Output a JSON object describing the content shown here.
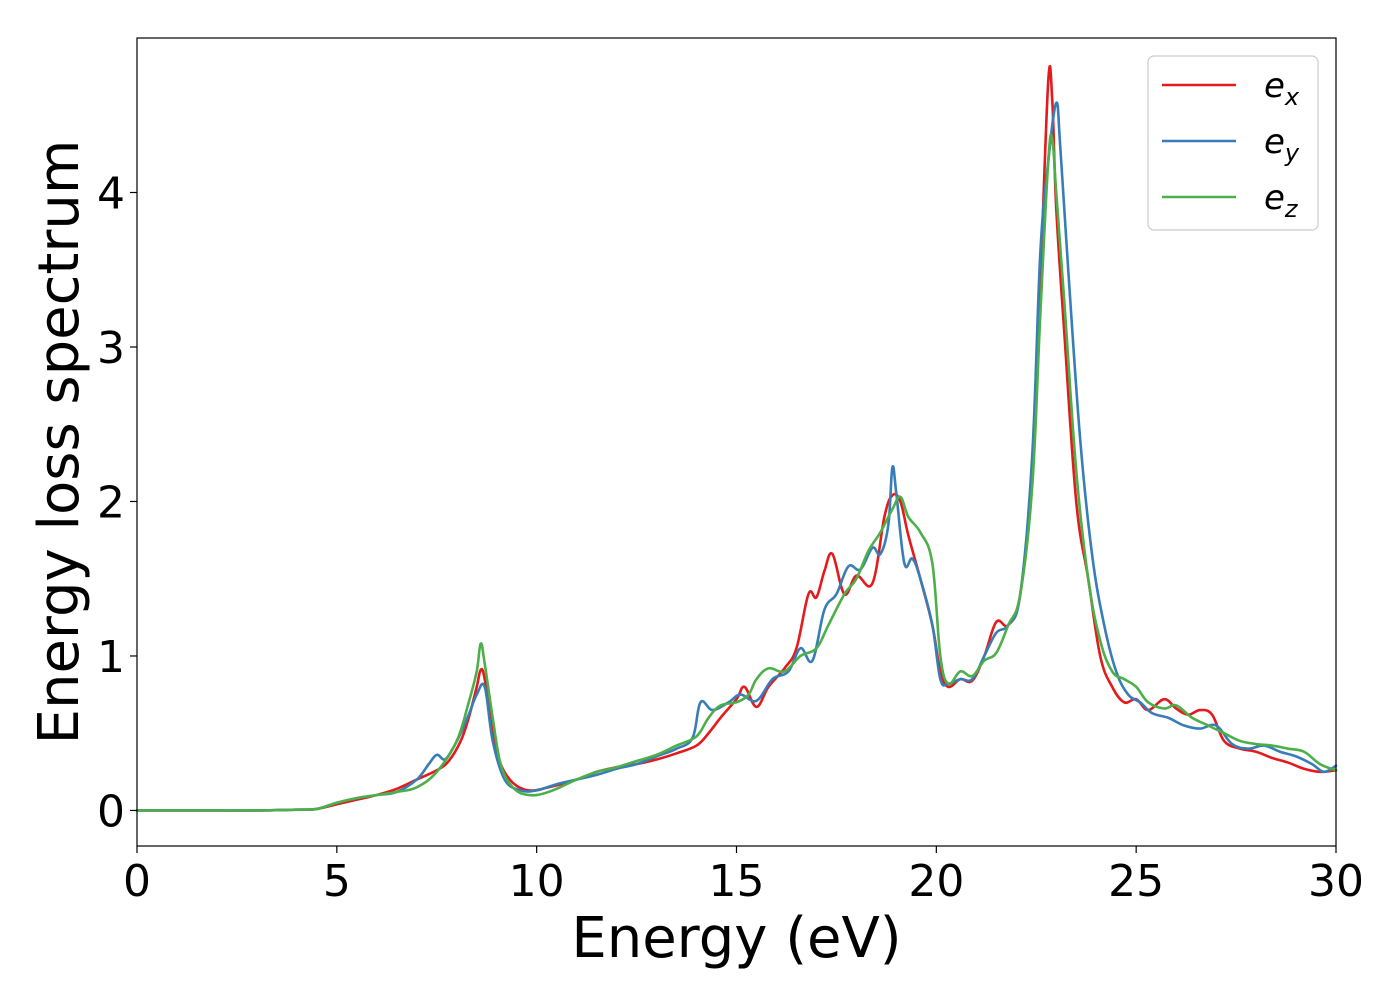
{
  "chart_data": {
    "type": "line",
    "title": "",
    "xlabel": "Energy (eV)",
    "ylabel": "Energy loss spectrum",
    "xlim": [
      0,
      30
    ],
    "ylim": [
      -0.23,
      5.0
    ],
    "xticks": [
      0,
      5,
      10,
      15,
      20,
      25,
      30
    ],
    "yticks": [
      0,
      1,
      2,
      3,
      4
    ],
    "grid": false,
    "legend_position": "top-right",
    "series": [
      {
        "name": "e_x",
        "legend_base": "e",
        "legend_sub": "x",
        "color": "#e41a1c",
        "x": [
          0,
          1,
          2,
          3,
          4,
          4.5,
          5,
          5.5,
          6,
          6.5,
          7,
          7.5,
          7.8,
          8.1,
          8.3,
          8.5,
          8.6,
          8.7,
          8.9,
          9.1,
          9.4,
          9.8,
          10.3,
          11,
          11.5,
          12,
          12.5,
          13,
          13.5,
          14,
          14.3,
          14.6,
          15,
          15.2,
          15.5,
          15.8,
          16.2,
          16.5,
          16.8,
          17.0,
          17.2,
          17.4,
          17.7,
          18.0,
          18.4,
          18.7,
          18.9,
          19.1,
          19.3,
          19.6,
          19.9,
          20.1,
          20.3,
          20.6,
          20.9,
          21.2,
          21.5,
          21.8,
          22.1,
          22.4,
          22.6,
          22.8,
          22.9,
          23.0,
          23.2,
          23.5,
          23.8,
          24.1,
          24.4,
          24.7,
          25.0,
          25.3,
          25.7,
          26.0,
          26.3,
          26.6,
          26.9,
          27.2,
          27.6,
          28.0,
          28.4,
          28.8,
          29.2,
          29.6,
          30.0
        ],
        "y": [
          0,
          0,
          0,
          0,
          0.005,
          0.01,
          0.04,
          0.07,
          0.1,
          0.14,
          0.2,
          0.26,
          0.32,
          0.45,
          0.6,
          0.8,
          0.91,
          0.85,
          0.5,
          0.3,
          0.18,
          0.13,
          0.15,
          0.2,
          0.25,
          0.28,
          0.3,
          0.33,
          0.37,
          0.42,
          0.5,
          0.6,
          0.72,
          0.8,
          0.67,
          0.8,
          0.92,
          1.05,
          1.4,
          1.38,
          1.55,
          1.66,
          1.4,
          1.52,
          1.47,
          1.9,
          2.04,
          2.0,
          1.78,
          1.5,
          1.2,
          0.9,
          0.8,
          0.85,
          0.84,
          1.0,
          1.22,
          1.2,
          1.4,
          2.2,
          3.4,
          4.72,
          4.6,
          3.9,
          3.1,
          2.0,
          1.5,
          1.0,
          0.8,
          0.7,
          0.72,
          0.65,
          0.72,
          0.66,
          0.62,
          0.65,
          0.62,
          0.45,
          0.4,
          0.38,
          0.34,
          0.31,
          0.27,
          0.25,
          0.26
        ]
      },
      {
        "name": "e_y",
        "legend_base": "e",
        "legend_sub": "y",
        "color": "#377eb8",
        "x": [
          0,
          1,
          2,
          3,
          4,
          4.5,
          5,
          5.5,
          6,
          6.5,
          7,
          7.3,
          7.5,
          7.7,
          7.9,
          8.1,
          8.3,
          8.5,
          8.7,
          8.9,
          9.2,
          9.6,
          10,
          10.5,
          11,
          11.5,
          12,
          12.5,
          13,
          13.5,
          13.9,
          14.1,
          14.4,
          14.8,
          15.1,
          15.5,
          15.9,
          16.3,
          16.6,
          16.9,
          17.2,
          17.5,
          17.8,
          18.1,
          18.4,
          18.6,
          18.8,
          18.9,
          19.0,
          19.2,
          19.4,
          19.6,
          19.9,
          20.1,
          20.3,
          20.6,
          20.9,
          21.2,
          21.5,
          21.8,
          22.1,
          22.4,
          22.6,
          22.8,
          23.0,
          23.1,
          23.3,
          23.6,
          23.9,
          24.2,
          24.5,
          24.8,
          25.1,
          25.4,
          25.8,
          26.2,
          26.6,
          27.0,
          27.4,
          27.8,
          28.2,
          28.6,
          29.0,
          29.4,
          29.7,
          30.0
        ],
        "y": [
          0,
          0,
          0,
          0,
          0.005,
          0.01,
          0.05,
          0.08,
          0.1,
          0.12,
          0.2,
          0.3,
          0.36,
          0.33,
          0.4,
          0.5,
          0.62,
          0.75,
          0.8,
          0.45,
          0.2,
          0.13,
          0.13,
          0.17,
          0.2,
          0.23,
          0.27,
          0.3,
          0.35,
          0.4,
          0.47,
          0.7,
          0.65,
          0.7,
          0.75,
          0.71,
          0.85,
          0.9,
          1.05,
          0.97,
          1.3,
          1.4,
          1.58,
          1.56,
          1.7,
          1.66,
          1.85,
          2.22,
          2.05,
          1.6,
          1.63,
          1.5,
          1.2,
          0.85,
          0.82,
          0.85,
          0.85,
          1.0,
          1.15,
          1.2,
          1.4,
          2.3,
          3.6,
          4.2,
          4.58,
          4.3,
          3.5,
          2.4,
          1.65,
          1.2,
          0.9,
          0.75,
          0.7,
          0.63,
          0.6,
          0.55,
          0.53,
          0.55,
          0.43,
          0.4,
          0.42,
          0.38,
          0.35,
          0.3,
          0.25,
          0.29
        ]
      },
      {
        "name": "e_z",
        "legend_base": "e",
        "legend_sub": "z",
        "color": "#4daf4a",
        "x": [
          0,
          1,
          2,
          3,
          4,
          4.5,
          5,
          5.5,
          6,
          6.5,
          7,
          7.5,
          8.0,
          8.3,
          8.5,
          8.6,
          8.7,
          8.9,
          9.1,
          9.4,
          9.8,
          10.3,
          11,
          11.5,
          12,
          12.5,
          13,
          13.5,
          14,
          14.3,
          14.6,
          15,
          15.3,
          15.5,
          15.8,
          16.2,
          16.6,
          17.0,
          17.3,
          17.7,
          18.0,
          18.3,
          18.6,
          18.9,
          19.1,
          19.3,
          19.6,
          19.9,
          20.1,
          20.3,
          20.6,
          20.9,
          21.2,
          21.5,
          21.8,
          22.1,
          22.4,
          22.6,
          22.8,
          22.9,
          23.0,
          23.2,
          23.5,
          23.8,
          24.1,
          24.4,
          24.7,
          25.0,
          25.3,
          25.7,
          26.0,
          26.4,
          26.8,
          27.2,
          27.6,
          28.0,
          28.4,
          28.8,
          29.2,
          29.6,
          30.0
        ],
        "y": [
          0,
          0,
          0,
          0,
          0.005,
          0.01,
          0.05,
          0.08,
          0.1,
          0.12,
          0.15,
          0.25,
          0.45,
          0.7,
          0.9,
          1.08,
          0.95,
          0.6,
          0.3,
          0.15,
          0.1,
          0.12,
          0.2,
          0.25,
          0.28,
          0.32,
          0.36,
          0.42,
          0.48,
          0.6,
          0.68,
          0.7,
          0.75,
          0.85,
          0.92,
          0.9,
          1.0,
          1.05,
          1.2,
          1.4,
          1.5,
          1.68,
          1.8,
          1.95,
          2.03,
          1.9,
          1.8,
          1.6,
          1.0,
          0.82,
          0.9,
          0.87,
          0.97,
          1.02,
          1.2,
          1.4,
          2.1,
          3.2,
          4.2,
          4.35,
          4.0,
          3.3,
          2.2,
          1.5,
          1.1,
          0.9,
          0.85,
          0.8,
          0.7,
          0.66,
          0.68,
          0.6,
          0.55,
          0.5,
          0.45,
          0.43,
          0.42,
          0.4,
          0.38,
          0.3,
          0.26
        ]
      }
    ]
  }
}
